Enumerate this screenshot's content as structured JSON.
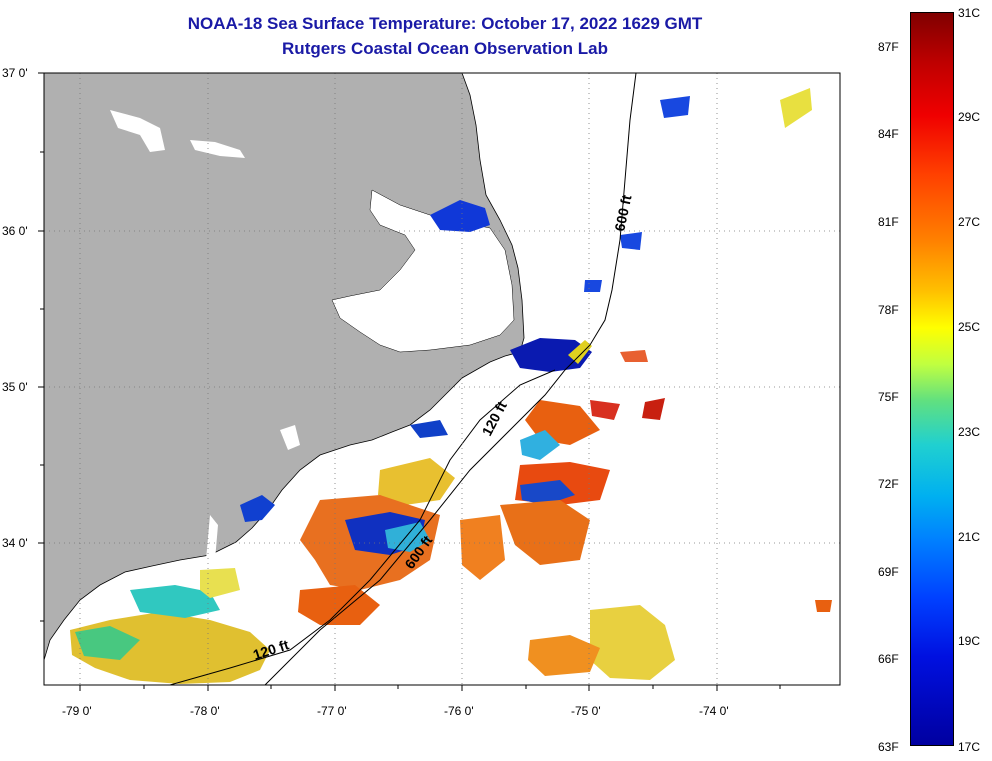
{
  "title": {
    "line1": "NOAA-18 Sea Surface Temperature:  October 17, 2022 1629 GMT",
    "line2": "Rutgers Coastal Ocean Observation Lab"
  },
  "colors": {
    "title": "#1a1aa6",
    "land": "#b0b0b0",
    "water": "#ffffff",
    "cold": "#0000a0",
    "hot": "#800000"
  },
  "axes": {
    "lat_labels": [
      "37 0'",
      "36 0'",
      "35 0'",
      "34 0'"
    ],
    "lon_labels": [
      "-79 0'",
      "-78 0'",
      "-77 0'",
      "-76 0'",
      "-75 0'",
      "-74 0'"
    ]
  },
  "contours": {
    "labels": [
      "600 ft",
      "120 ft",
      "600 ft",
      "120 ft"
    ]
  },
  "colorbar": {
    "fahrenheit": [
      "87F",
      "84F",
      "81F",
      "78F",
      "75F",
      "72F",
      "69F",
      "66F",
      "63F"
    ],
    "celsius": [
      "31C",
      "29C",
      "27C",
      "25C",
      "23C",
      "21C",
      "19C",
      "17C"
    ],
    "range_c": [
      17,
      31
    ]
  }
}
